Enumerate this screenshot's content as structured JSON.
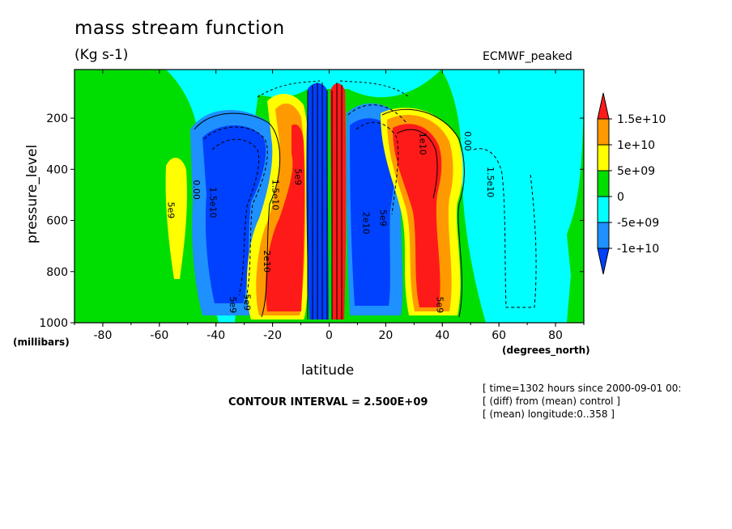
{
  "chart_data": {
    "type": "heatmap",
    "title": "mass stream function",
    "units_label": "(Kg s-1)",
    "dataset_label": "ECMWF_peaked",
    "xlabel": "latitude",
    "x_units": "(degrees_north)",
    "ylabel": "pressure_level",
    "y_units": "(millibars)",
    "xlim": [
      -90,
      90
    ],
    "ylim": [
      1000,
      10
    ],
    "x_ticks": [
      -80,
      -60,
      -40,
      -20,
      0,
      20,
      40,
      60,
      80
    ],
    "y_ticks": [
      200,
      400,
      600,
      800,
      1000
    ],
    "contour_interval_text": "CONTOUR INTERVAL = 2.500E+09",
    "meta_lines": [
      "[ time=1302 hours since 2000-09-01 00:",
      "[ (diff) from (mean) control ]",
      "[ (mean) longitude:0..358 ]"
    ],
    "colorbar": {
      "labels": [
        "1.5e+10",
        "1e+10",
        "5e+09",
        "0",
        "-5e+09",
        "-1e+10"
      ],
      "colors": [
        "#ff1a1a",
        "#ff9900",
        "#ffff00",
        "#00dd00",
        "#00ffff",
        "#1e90ff",
        "#0040ff"
      ]
    },
    "regions": [
      {
        "name": "sh-cell-neg",
        "x_range": [
          -45,
          -25
        ],
        "p_range": [
          980,
          150
        ],
        "value": -15000000000.0,
        "color": "#0040ff"
      },
      {
        "name": "sh-cell-pos",
        "x_range": [
          -25,
          -10
        ],
        "p_range": [
          980,
          250
        ],
        "value": 20000000000.0,
        "color": "#ff1a1a"
      },
      {
        "name": "sh-outer-pos",
        "x_range": [
          -60,
          -52
        ],
        "p_range": [
          830,
          340
        ],
        "value": 5000000000.0,
        "color": "#ffff00"
      },
      {
        "name": "eq-neg",
        "x_range": [
          -8,
          -2
        ],
        "p_range": [
          990,
          120
        ],
        "value": -25000000000.0,
        "color": "#0040ff"
      },
      {
        "name": "eq-pos",
        "x_range": [
          0,
          5
        ],
        "p_range": [
          990,
          120
        ],
        "value": 25000000000.0,
        "color": "#ff1a1a"
      },
      {
        "name": "nh-cell-neg",
        "x_range": [
          8,
          25
        ],
        "p_range": [
          980,
          150
        ],
        "value": -15000000000.0,
        "color": "#0040ff"
      },
      {
        "name": "nh-cell-pos",
        "x_range": [
          25,
          45
        ],
        "p_range": [
          980,
          200
        ],
        "value": 20000000000.0,
        "color": "#ff1a1a"
      },
      {
        "name": "nh-outer-neg",
        "x_range": [
          50,
          75
        ],
        "p_range": [
          950,
          200
        ],
        "value": -3000000000.0,
        "color": "#00ffff"
      }
    ],
    "annotations": [
      "5e9",
      "0.00",
      "1.5e10",
      "5e9",
      "1.5e10",
      "2e10",
      "5e9",
      "5e9",
      "1e10",
      "5e9",
      "0.00",
      "1.5e10",
      "2e10",
      "5e9"
    ]
  }
}
